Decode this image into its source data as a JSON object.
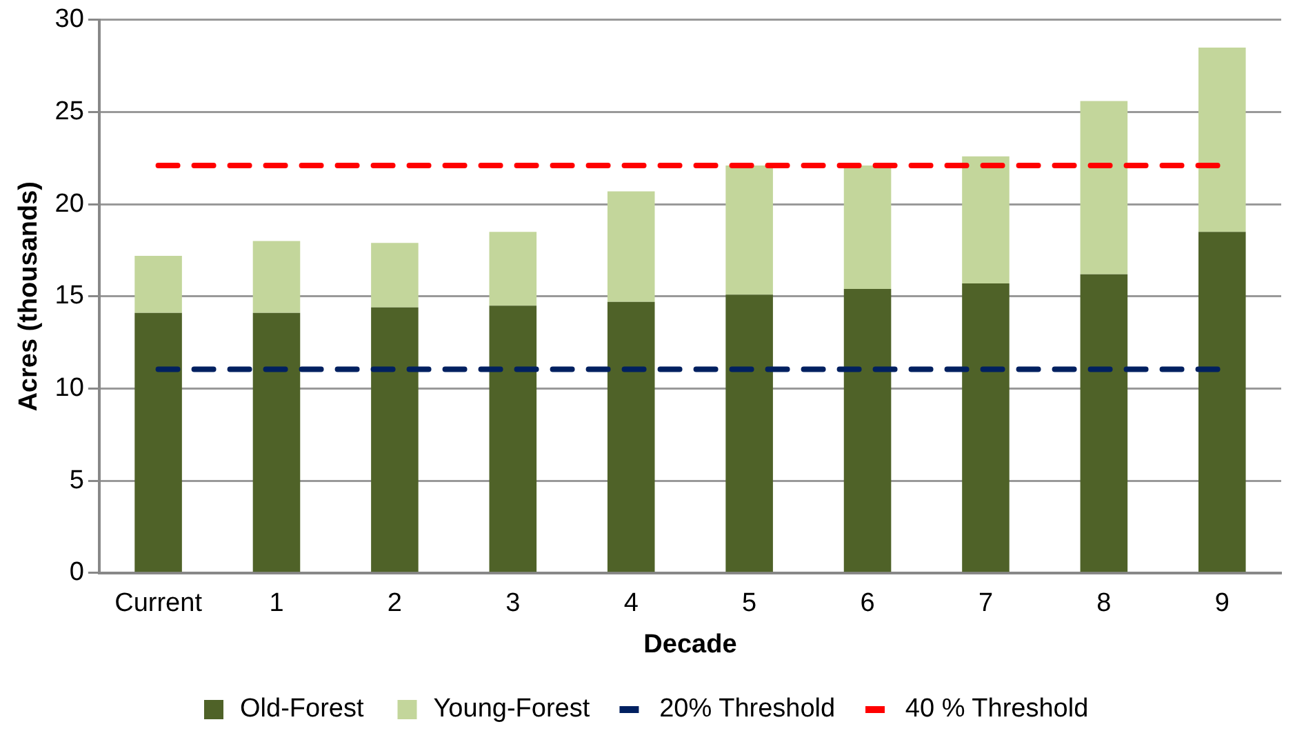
{
  "chart_data": {
    "type": "bar",
    "stacked": true,
    "xlabel": "Decade",
    "ylabel": "Acres (thousands)",
    "categories": [
      "Current",
      "1",
      "2",
      "3",
      "4",
      "5",
      "6",
      "7",
      "8",
      "9"
    ],
    "series": [
      {
        "name": "Old-Forest",
        "color": "#4f6228",
        "values": [
          14.1,
          14.1,
          14.4,
          14.5,
          14.7,
          15.1,
          15.4,
          15.7,
          16.2,
          18.5
        ]
      },
      {
        "name": "Young-Forest",
        "color": "#c3d69b",
        "values": [
          3.1,
          3.9,
          3.5,
          4,
          6,
          7,
          6.7,
          6.9,
          9.4,
          10
        ]
      },
      {
        "name": "20% Threshold",
        "type": "line",
        "line_style": "dashed",
        "marker": "none",
        "color": "#002060",
        "values": [
          11.05,
          11.05,
          11.05,
          11.05,
          11.05,
          11.05,
          11.05,
          11.05,
          11.05,
          11.05
        ]
      },
      {
        "name": "40 % Threshold",
        "type": "line",
        "line_style": "dashed",
        "marker": "none",
        "color": "#ff0000",
        "values": [
          22.1,
          22.1,
          22.1,
          22.1,
          22.1,
          22.1,
          22.1,
          22.1,
          22.1,
          22.1
        ]
      }
    ],
    "ylim": [
      0,
      30
    ],
    "yticks": [
      0,
      5,
      10,
      15,
      20,
      25,
      30
    ],
    "grid": "y",
    "legend": "bottom"
  }
}
